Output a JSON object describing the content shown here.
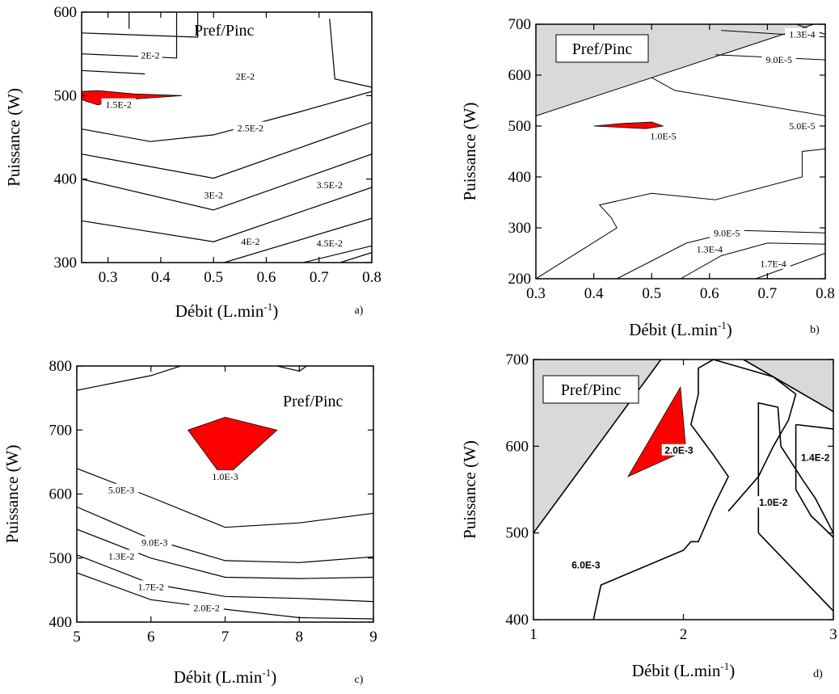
{
  "chart_data": [
    {
      "id": "a",
      "type": "contour",
      "panel_tag": "a)",
      "legend_box_label": "Pref/Pinc",
      "xlabel": "Débit (L.min",
      "xlabel_sup": "-1",
      "xlabel_close": ")",
      "ylabel": "Puissance (W)",
      "xlim": [
        0.25,
        0.8
      ],
      "ylim": [
        300,
        600
      ],
      "xticks": [
        "0.3",
        "0.4",
        "0.5",
        "0.6",
        "0.7",
        "0.8"
      ],
      "xtick_values": [
        0.3,
        0.4,
        0.5,
        0.6,
        0.7,
        0.8
      ],
      "yticks": [
        "300",
        "400",
        "500",
        "600"
      ],
      "ytick_values": [
        300,
        400,
        500,
        600
      ],
      "lines": [
        {
          "pts": [
            [
              0.25,
              575
            ],
            [
              0.47,
              570
            ],
            [
              0.47,
              600
            ]
          ]
        },
        {
          "pts": [
            [
              0.25,
              550
            ],
            [
              0.43,
              545
            ],
            [
              0.43,
              600
            ]
          ]
        },
        {
          "pts": [
            [
              0.25,
              530
            ],
            [
              0.37,
              526
            ]
          ]
        },
        {
          "pts": [
            [
              0.34,
              600
            ],
            [
              0.34,
              580
            ]
          ]
        },
        {
          "pts": [
            [
              0.72,
              592
            ],
            [
              0.73,
              520
            ],
            [
              0.8,
              510
            ]
          ]
        },
        {
          "pts": [
            [
              0.25,
              460
            ],
            [
              0.38,
              445
            ],
            [
              0.5,
              453
            ],
            [
              0.66,
              480
            ],
            [
              0.8,
              505
            ]
          ]
        },
        {
          "pts": [
            [
              0.25,
              430
            ],
            [
              0.5,
              401
            ],
            [
              0.8,
              468
            ]
          ]
        },
        {
          "pts": [
            [
              0.25,
              400
            ],
            [
              0.5,
              363
            ],
            [
              0.8,
              430
            ]
          ]
        },
        {
          "pts": [
            [
              0.25,
              350
            ],
            [
              0.5,
              325
            ],
            [
              0.8,
              390
            ]
          ]
        },
        {
          "pts": [
            [
              0.52,
              300
            ],
            [
              0.8,
              353
            ]
          ]
        },
        {
          "pts": [
            [
              0.67,
              300
            ],
            [
              0.8,
              320
            ]
          ]
        },
        {
          "pts": [
            [
              0.74,
              300
            ],
            [
              0.8,
              312
            ]
          ]
        }
      ],
      "regions": [
        {
          "fill": "#ff0000",
          "pts": [
            [
              0.25,
              505
            ],
            [
              0.25,
              495
            ],
            [
              0.28,
              489
            ],
            [
              0.33,
              495
            ],
            [
              0.44,
              500
            ],
            [
              0.35,
              502
            ],
            [
              0.28,
              506
            ]
          ]
        }
      ],
      "labels": [
        {
          "text": "2E-2",
          "x": 0.38,
          "y": 548
        },
        {
          "text": "2E-2",
          "x": 0.56,
          "y": 523
        },
        {
          "text": "1.5E-2",
          "x": 0.32,
          "y": 489
        },
        {
          "text": "2.5E-2",
          "x": 0.57,
          "y": 461
        },
        {
          "text": "3E-2",
          "x": 0.5,
          "y": 381
        },
        {
          "text": "3.5E-2",
          "x": 0.72,
          "y": 393
        },
        {
          "text": "4E-2",
          "x": 0.57,
          "y": 325
        },
        {
          "text": "4.5E-2",
          "x": 0.72,
          "y": 323
        }
      ]
    },
    {
      "id": "b",
      "type": "contour",
      "panel_tag": "b)",
      "legend_box_label": "Pref/Pinc",
      "xlabel": "Débit (L.min",
      "xlabel_sup": "-1",
      "xlabel_close": ")",
      "ylabel": "Puissance (W)",
      "xlim": [
        0.3,
        0.8
      ],
      "ylim": [
        200,
        700
      ],
      "xticks": [
        "0.3",
        "0.4",
        "0.5",
        "0.6",
        "0.7",
        "0.8"
      ],
      "xtick_values": [
        0.3,
        0.4,
        0.5,
        0.6,
        0.7,
        0.8
      ],
      "yticks": [
        "200",
        "300",
        "400",
        "500",
        "600",
        "700"
      ],
      "ytick_values": [
        200,
        300,
        400,
        500,
        600,
        700
      ],
      "lines": [
        {
          "pts": [
            [
              0.3,
              520
            ],
            [
              0.78,
              700
            ]
          ]
        },
        {
          "pts": [
            [
              0.5,
              595
            ],
            [
              0.54,
              570
            ],
            [
              0.8,
              520
            ]
          ]
        },
        {
          "pts": [
            [
              0.61,
              640
            ],
            [
              0.8,
              630
            ]
          ]
        },
        {
          "pts": [
            [
              0.75,
              700
            ],
            [
              0.8,
              680
            ]
          ]
        },
        {
          "pts": [
            [
              0.62,
              688
            ],
            [
              0.8,
              675
            ]
          ]
        },
        {
          "pts": [
            [
              0.3,
              200
            ],
            [
              0.44,
              300
            ],
            [
              0.43,
              320
            ],
            [
              0.41,
              345
            ],
            [
              0.5,
              368
            ],
            [
              0.61,
              355
            ],
            [
              0.76,
              400
            ],
            [
              0.76,
              450
            ],
            [
              0.8,
              455
            ]
          ]
        },
        {
          "pts": [
            [
              0.44,
              200
            ],
            [
              0.56,
              270
            ],
            [
              0.65,
              295
            ],
            [
              0.8,
              290
            ]
          ]
        },
        {
          "pts": [
            [
              0.55,
              200
            ],
            [
              0.62,
              245
            ],
            [
              0.7,
              270
            ],
            [
              0.8,
              268
            ]
          ]
        },
        {
          "pts": [
            [
              0.68,
              200
            ],
            [
              0.8,
              250
            ]
          ]
        }
      ],
      "regions": [
        {
          "fill": "#d9d9d9",
          "pts": [
            [
              0.3,
              700
            ],
            [
              0.78,
              700
            ],
            [
              0.3,
              520
            ]
          ]
        },
        {
          "fill": "#ff0000",
          "pts": [
            [
              0.4,
              500
            ],
            [
              0.45,
              505
            ],
            [
              0.5,
              508
            ],
            [
              0.52,
              500
            ],
            [
              0.49,
              495
            ]
          ]
        }
      ],
      "labels": [
        {
          "text": "1.3E-4",
          "x": 0.76,
          "y": 680
        },
        {
          "text": "9.0E-5",
          "x": 0.72,
          "y": 630
        },
        {
          "text": "1.0E-5",
          "x": 0.52,
          "y": 480
        },
        {
          "text": "5.0E-5",
          "x": 0.76,
          "y": 500
        },
        {
          "text": "9.0E-5",
          "x": 0.63,
          "y": 290
        },
        {
          "text": "1.3E-4",
          "x": 0.6,
          "y": 258
        },
        {
          "text": "1.7E-4",
          "x": 0.71,
          "y": 229
        }
      ]
    },
    {
      "id": "c",
      "type": "contour",
      "panel_tag": "c)",
      "legend_box_label": "Pref/Pinc",
      "xlabel": "Débit (L.min",
      "xlabel_sup": "-1",
      "xlabel_close": ")",
      "ylabel": "Puissance (W)",
      "xlim": [
        5,
        9
      ],
      "ylim": [
        400,
        800
      ],
      "xticks": [
        "5",
        "6",
        "7",
        "8",
        "9"
      ],
      "xtick_values": [
        5,
        6,
        7,
        8,
        9
      ],
      "yticks": [
        "400",
        "500",
        "600",
        "700",
        "800"
      ],
      "ytick_values": [
        400,
        500,
        600,
        700,
        800
      ],
      "lines": [
        {
          "pts": [
            [
              5,
              762
            ],
            [
              6,
              785
            ],
            [
              6.4,
              800
            ]
          ]
        },
        {
          "pts": [
            [
              7.7,
              800
            ],
            [
              8,
              792
            ],
            [
              8.1,
              800
            ]
          ]
        },
        {
          "pts": [
            [
              5,
              640
            ],
            [
              6,
              595
            ],
            [
              7,
              548
            ],
            [
              8,
              555
            ],
            [
              9,
              570
            ]
          ]
        },
        {
          "pts": [
            [
              5,
              580
            ],
            [
              6,
              530
            ],
            [
              7,
              496
            ],
            [
              8,
              493
            ],
            [
              9,
              502
            ]
          ]
        },
        {
          "pts": [
            [
              5,
              545
            ],
            [
              6,
              500
            ],
            [
              7,
              470
            ],
            [
              8,
              468
            ],
            [
              9,
              470
            ]
          ]
        },
        {
          "pts": [
            [
              5,
              505
            ],
            [
              6,
              460
            ],
            [
              7,
              440
            ],
            [
              8,
              437
            ],
            [
              9,
              432
            ]
          ]
        },
        {
          "pts": [
            [
              5,
              477
            ],
            [
              6,
              435
            ],
            [
              7,
              420
            ],
            [
              8,
              407
            ],
            [
              9,
              405
            ]
          ]
        }
      ],
      "regions": [
        {
          "fill": "#ff0000",
          "pts": [
            [
              6.5,
              700
            ],
            [
              7,
              720
            ],
            [
              7.7,
              700
            ],
            [
              7.1,
              637
            ],
            [
              6.9,
              637
            ]
          ]
        }
      ],
      "labels": [
        {
          "text": "1.0E-3",
          "x": 7,
          "y": 627
        },
        {
          "text": "5.0E-3",
          "x": 5.6,
          "y": 606
        },
        {
          "text": "9.0E-3",
          "x": 6.05,
          "y": 524
        },
        {
          "text": "1.3E-2",
          "x": 5.6,
          "y": 503
        },
        {
          "text": "1.7E-2",
          "x": 6.0,
          "y": 455
        },
        {
          "text": "2.0E-2",
          "x": 6.75,
          "y": 422
        }
      ]
    },
    {
      "id": "d",
      "type": "contour",
      "panel_tag": "d)",
      "legend_box_label": "Pref/Pinc",
      "xlabel": "Débit (L.min",
      "xlabel_sup": "-1",
      "xlabel_close": ")",
      "ylabel": "Puissance (W)",
      "xlim": [
        1,
        3
      ],
      "ylim": [
        400,
        700
      ],
      "xticks": [
        "1",
        "2",
        "3"
      ],
      "xtick_values": [
        1,
        2,
        3
      ],
      "yticks": [
        "400",
        "500",
        "600",
        "700"
      ],
      "ytick_values": [
        400,
        500,
        600,
        700
      ],
      "lines": [
        {
          "pts": [
            [
              1,
              500
            ],
            [
              1.85,
              700
            ]
          ]
        },
        {
          "pts": [
            [
              2.4,
              700
            ],
            [
              3,
              640
            ]
          ]
        },
        {
          "pts": [
            [
              1.4,
              400
            ],
            [
              1.45,
              440
            ],
            [
              2,
              480
            ],
            [
              2.05,
              490
            ],
            [
              2.1,
              490
            ],
            [
              2.2,
              530
            ],
            [
              2.3,
              565
            ],
            [
              2.2,
              590
            ],
            [
              2.05,
              625
            ],
            [
              2.1,
              660
            ],
            [
              2.1,
              690
            ],
            [
              2.2,
              700
            ]
          ]
        },
        {
          "pts": [
            [
              2.2,
              700
            ],
            [
              2.6,
              680
            ],
            [
              2.75,
              660
            ],
            [
              2.7,
              630
            ],
            [
              2.6,
              600
            ],
            [
              2.5,
              565
            ],
            [
              2.3,
              525
            ]
          ]
        },
        {
          "pts": [
            [
              2.5,
              500
            ],
            [
              2.5,
              650
            ],
            [
              2.63,
              645
            ],
            [
              2.65,
              600
            ],
            [
              2.8,
              560
            ],
            [
              2.88,
              540
            ],
            [
              3,
              500
            ]
          ]
        },
        {
          "pts": [
            [
              2.5,
              500
            ],
            [
              3,
              410
            ]
          ]
        },
        {
          "pts": [
            [
              2.75,
              625
            ],
            [
              2.75,
              550
            ],
            [
              2.85,
              520
            ],
            [
              3,
              495
            ]
          ]
        },
        {
          "pts": [
            [
              2.75,
              625
            ],
            [
              3,
              620
            ]
          ]
        }
      ],
      "regions": [
        {
          "fill": "#d9d9d9",
          "pts": [
            [
              1,
              700
            ],
            [
              1.85,
              700
            ],
            [
              1,
              500
            ]
          ]
        },
        {
          "fill": "#d9d9d9",
          "pts": [
            [
              2.4,
              700
            ],
            [
              3,
              700
            ],
            [
              3,
              640
            ]
          ]
        },
        {
          "fill": "#ff0000",
          "pts": [
            [
              1.63,
              565
            ],
            [
              1.98,
              668
            ],
            [
              2.02,
              590
            ],
            [
              1.95,
              590
            ]
          ]
        }
      ],
      "labels": [
        {
          "text": "2.0E-3",
          "x": 1.97,
          "y": 595
        },
        {
          "text": "1.4E-2",
          "x": 2.88,
          "y": 587
        },
        {
          "text": "1.0E-2",
          "x": 2.6,
          "y": 535
        },
        {
          "text": "6.0E-3",
          "x": 1.35,
          "y": 463
        }
      ]
    }
  ]
}
